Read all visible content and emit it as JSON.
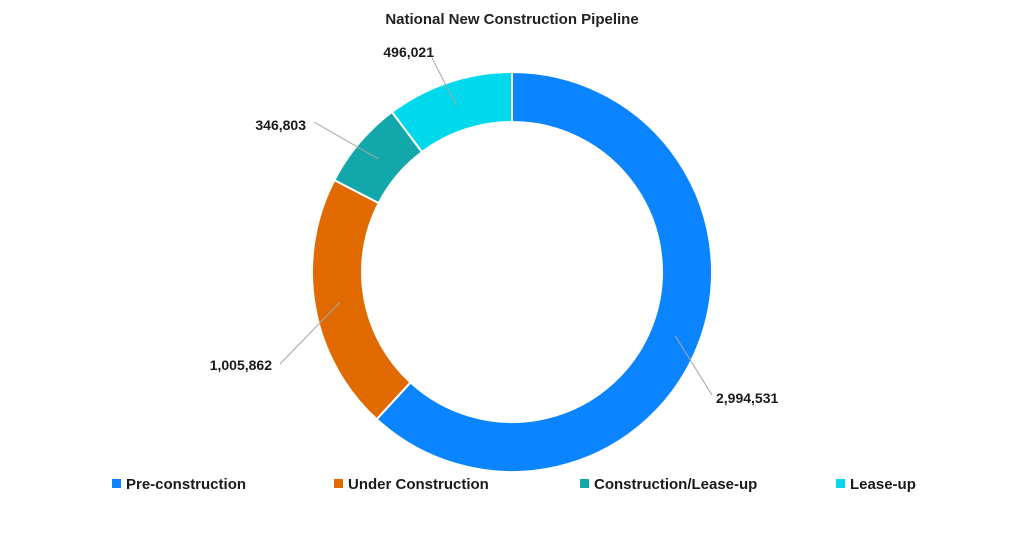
{
  "chart_data": {
    "type": "pie",
    "variant": "donut",
    "title": "National New Construction Pipeline",
    "categories": [
      "Pre-construction",
      "Under Construction",
      "Construction/Lease-up",
      "Lease-up"
    ],
    "values": [
      2994531,
      1005862,
      346803,
      496021
    ],
    "data_labels": [
      "2,994,531",
      "1,005,862",
      "346,803",
      "496,021"
    ],
    "colors": [
      "#0a84ff",
      "#e06a00",
      "#12a8ab",
      "#00d9ec"
    ],
    "start_angle": "12 o'clock",
    "direction": "clockwise",
    "legend_position": "bottom"
  }
}
